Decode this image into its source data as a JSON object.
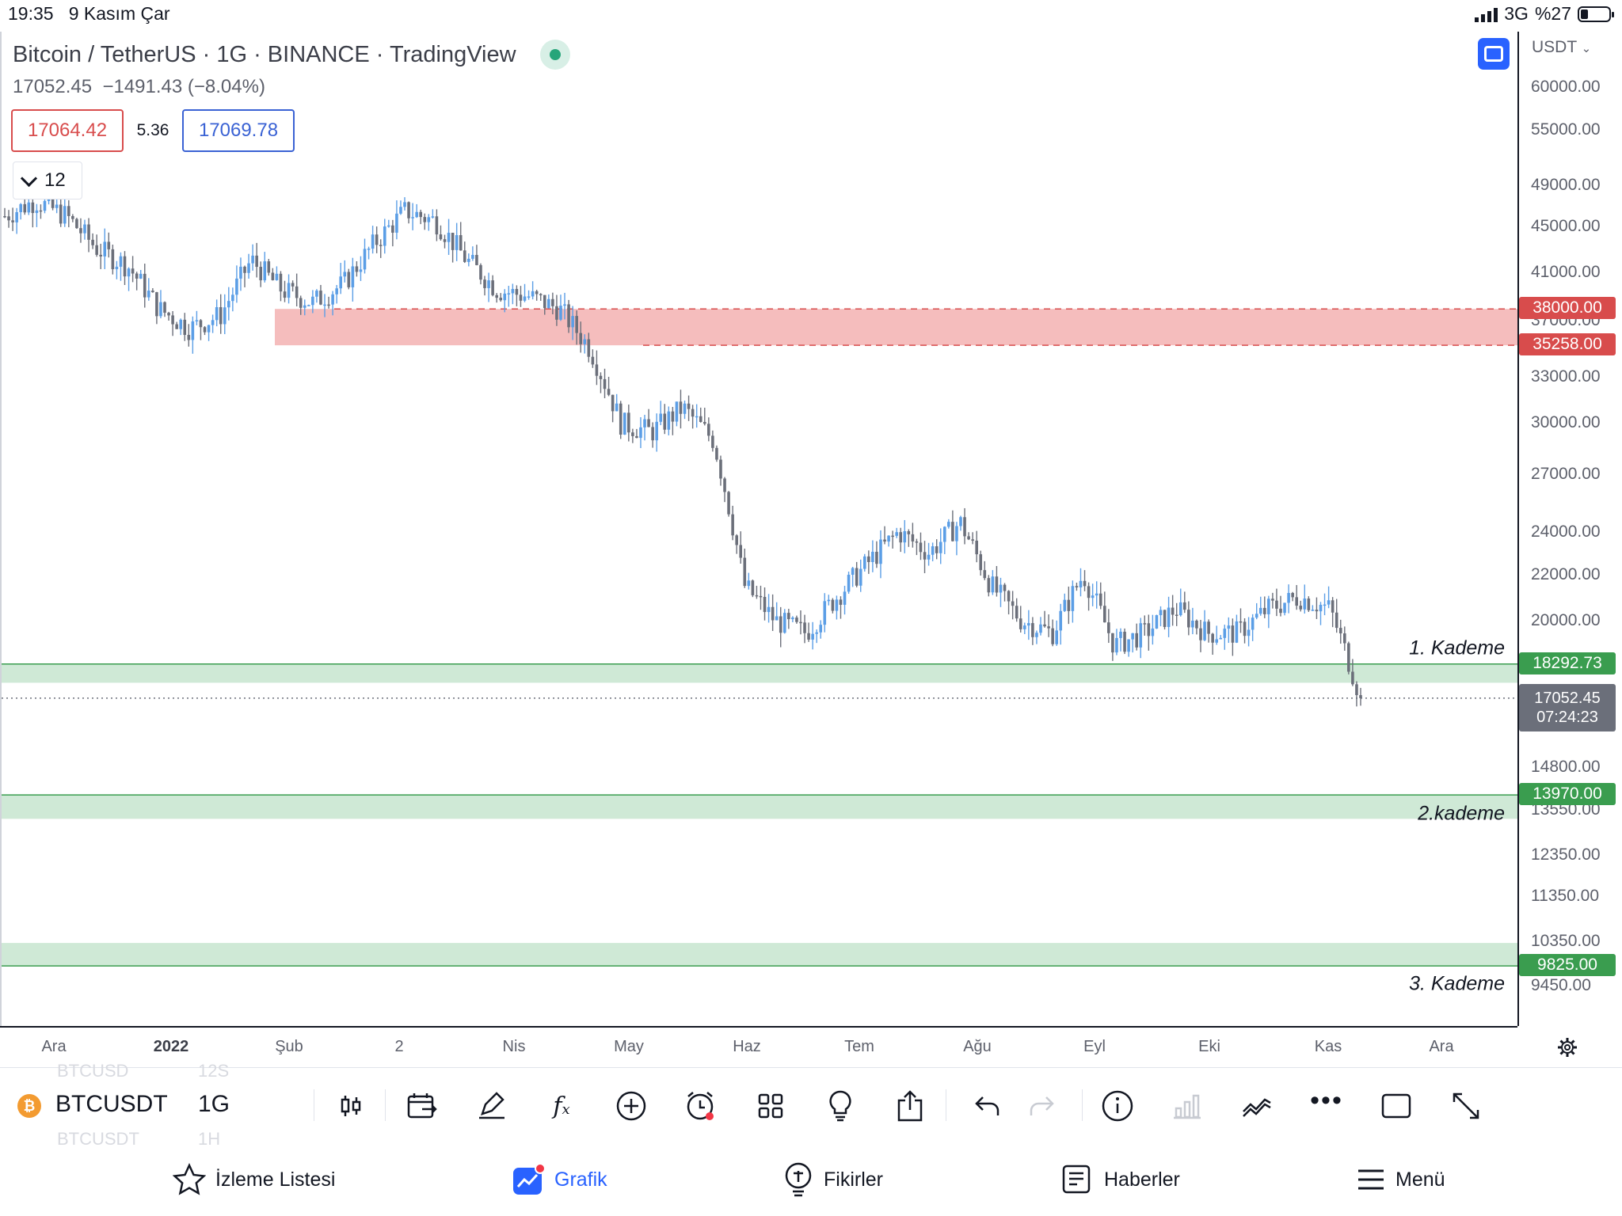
{
  "status_bar": {
    "time": "19:35",
    "date": "9 Kasım Çar",
    "network": "3G",
    "battery": "%27"
  },
  "chart": {
    "title": "Bitcoin / TetherUS · 1G · BINANCE · TradingView",
    "ohlc_last": "17052.45",
    "ohlc_change": "−1491.43 (−8.04%)",
    "sell_price": "17064.42",
    "spread": "5.36",
    "buy_price": "17069.78",
    "collapsed_count": "12",
    "currency": "USDT",
    "colors": {
      "up": "#5b9ee6",
      "down": "#6b6f7a",
      "resistance": "#d84c4c",
      "support": "#3a9d4f"
    }
  },
  "price_axis": {
    "ticks": [
      "60000.00",
      "55000.00",
      "49000.00",
      "45000.00",
      "41000.00",
      "37000.00",
      "33000.00",
      "30000.00",
      "27000.00",
      "24000.00",
      "22000.00",
      "20000.00",
      "14800.00",
      "13550.00",
      "12350.00",
      "11350.00",
      "10350.00",
      "9450.00"
    ],
    "labels": {
      "resistance_top": "38000.00",
      "resistance_bottom": "35258.00",
      "level1": "18292.73",
      "level2": "13970.00",
      "level3": "9825.00",
      "current": "17052.45",
      "countdown": "07:24:23"
    }
  },
  "zones": {
    "level1": "1. Kademe",
    "level2": "2.kademe",
    "level3": "3. Kademe"
  },
  "time_axis": [
    "Ara",
    "2022",
    "Şub",
    "2",
    "Nis",
    "May",
    "Haz",
    "Tem",
    "Ağu",
    "Eyl",
    "Eki",
    "Kas",
    "Ara"
  ],
  "chart_data": {
    "type": "candlestick",
    "series": [
      {
        "x_start": "Ara 2021",
        "x_end": "Kas 2022",
        "close_points": [
          46000,
          47500,
          46000,
          43000,
          41500,
          38000,
          36500,
          37500,
          42000,
          39500,
          38500,
          40000,
          43500,
          46500,
          45500,
          42000,
          39500,
          39000,
          38000,
          35000,
          30000,
          29500,
          31000,
          29000,
          21500,
          20000,
          19500,
          21000,
          22500,
          24000,
          23000,
          24500,
          21500,
          20000,
          19500,
          22000,
          19000,
          19500,
          20500,
          19500,
          19500,
          20500,
          21000,
          20500,
          17052
        ]
      }
    ],
    "price_scale": "log",
    "ylim": [
      9000,
      64000
    ],
    "zones": [
      {
        "name": "resistance",
        "from": 35258,
        "to": 38000
      },
      {
        "name": "1. Kademe",
        "from": 17600,
        "to": 18292.73
      },
      {
        "name": "2.kademe",
        "from": 13300,
        "to": 13970
      },
      {
        "name": "3. Kademe",
        "from": 9825,
        "to": 10300
      }
    ],
    "current_price": 17052.45
  },
  "toolbar": {
    "symbol": "BTCUSDT",
    "interval": "1G",
    "ghost_symbol_above": "BTCUSD",
    "ghost_interval_above": "12S",
    "ghost_symbol_below": "BTCUSDT",
    "ghost_interval_below": "1H"
  },
  "nav": {
    "watchlist": "İzleme Listesi",
    "chart": "Grafik",
    "ideas": "Fikirler",
    "news": "Haberler",
    "menu": "Menü"
  }
}
